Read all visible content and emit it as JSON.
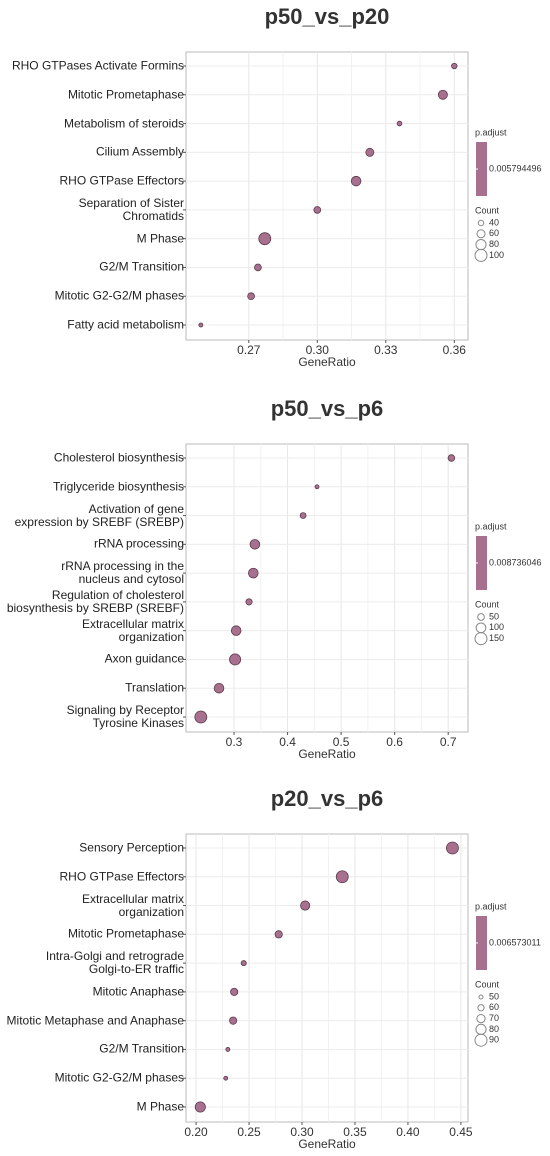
{
  "chart_data": [
    {
      "type": "dot",
      "title": "p50_vs_p20",
      "xlabel": "GeneRatio",
      "categories": [
        "RHO GTPases Activate Formins",
        "Mitotic Prometaphase",
        "Metabolism of steroids",
        "Cilium Assembly",
        "RHO GTPase Effectors",
        "Separation of Sister\nChromatids",
        "M Phase",
        "G2/M Transition",
        "Mitotic G2-G2/M phases",
        "Fatty acid metabolism"
      ],
      "values": [
        0.36,
        0.355,
        0.336,
        0.323,
        0.317,
        0.3,
        0.277,
        0.274,
        0.271,
        0.249
      ],
      "sizes": [
        40,
        70,
        35,
        60,
        75,
        50,
        100,
        50,
        50,
        30
      ],
      "xlim": [
        0.2425,
        0.366
      ],
      "xticks": [
        0.27,
        {
          "value": 0.3,
          "label": "0.30"
        },
        0.33,
        0.36
      ],
      "color": "#a8708f",
      "grid": true,
      "color_legend": {
        "title": "p.adjust",
        "value": 0.005794496
      },
      "size_legend": {
        "title": "Count",
        "ticks": [
          40,
          60,
          80,
          100
        ]
      }
    },
    {
      "type": "dot",
      "title": "p50_vs_p6",
      "xlabel": "GeneRatio",
      "categories": [
        "Cholesterol biosynthesis",
        "Triglyceride biosynthesis",
        "Activation of gene\nexpression by SREBF (SREBP)",
        "rRNA processing",
        "rRNA processing in the\nnucleus and cytosol",
        "Regulation of cholesterol\nbiosynthesis by SREBP (SREBF)",
        "Extracellular matrix\norganization",
        "Axon guidance",
        "Translation",
        "Signaling by Receptor\nTyrosine Kinases"
      ],
      "values": [
        0.706,
        0.455,
        0.429,
        0.339,
        0.336,
        0.328,
        0.304,
        0.302,
        0.272,
        0.238
      ],
      "sizes": [
        50,
        20,
        40,
        100,
        100,
        45,
        100,
        130,
        100,
        150
      ],
      "xlim": [
        0.2103,
        0.737
      ],
      "xticks": [
        0.3,
        0.4,
        0.5,
        0.6,
        0.7
      ],
      "color": "#a8708f",
      "grid": true,
      "color_legend": {
        "title": "p.adjust",
        "value": 0.008736046
      },
      "size_legend": {
        "title": "Count",
        "ticks": [
          50,
          100,
          150
        ]
      }
    },
    {
      "type": "dot",
      "title": "p20_vs_p6",
      "xlabel": "GeneRatio",
      "categories": [
        "Sensory Perception",
        "RHO GTPase Effectors",
        "Extracellular matrix\norganization",
        "Mitotic Prometaphase",
        "Intra-Golgi and retrograde\nGolgi-to-ER traffic",
        "Mitotic Anaphase",
        "Mitotic Metaphase and Anaphase",
        "G2/M Transition",
        "Mitotic G2-G2/M phases",
        "M Phase"
      ],
      "values": [
        0.442,
        0.338,
        0.303,
        0.278,
        0.245,
        0.236,
        0.235,
        0.23,
        0.228,
        0.204
      ],
      "sizes": [
        90,
        90,
        75,
        65,
        55,
        65,
        65,
        50,
        50,
        80
      ],
      "xlim": [
        0.1905,
        0.4567
      ],
      "xticks": [
        {
          "value": 0.2,
          "label": "0.20"
        },
        0.25,
        {
          "value": 0.3,
          "label": "0.30"
        },
        0.35,
        {
          "value": 0.4,
          "label": "0.40"
        },
        0.45
      ],
      "color": "#a8708f",
      "grid": true,
      "color_legend": {
        "title": "p.adjust",
        "value": 0.006573011
      },
      "size_legend": {
        "title": "Count",
        "ticks": [
          50,
          60,
          70,
          80,
          90
        ]
      }
    }
  ]
}
